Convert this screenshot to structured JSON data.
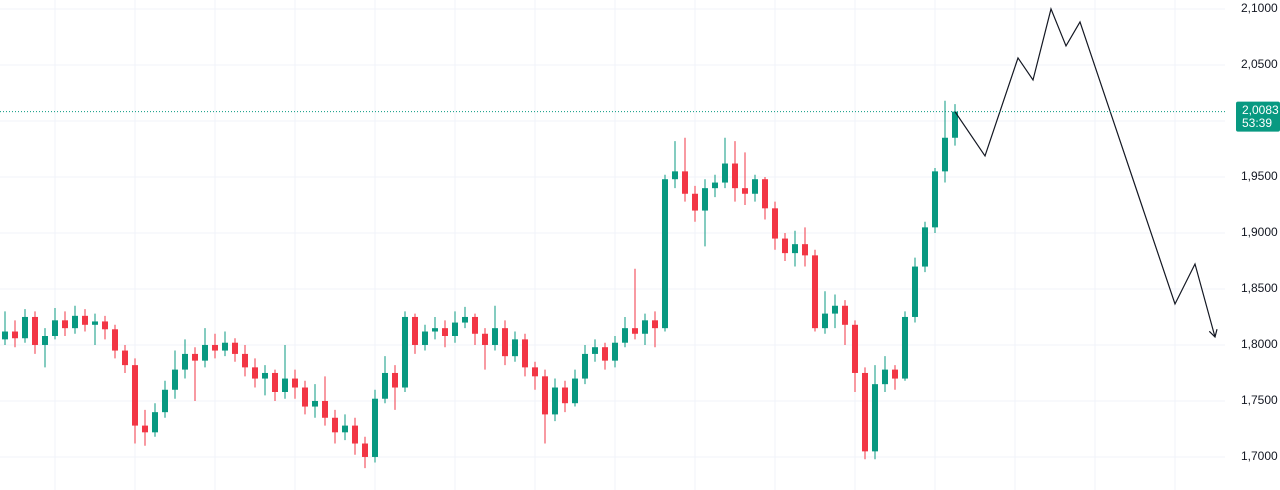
{
  "chart_data": {
    "type": "candlestick",
    "open": [
      1.805,
      1.812,
      1.806,
      1.825,
      1.8,
      1.808,
      1.822,
      1.815,
      1.826,
      1.818,
      1.821,
      1.814,
      1.795,
      1.782,
      1.728,
      1.722,
      1.74,
      1.76,
      1.778,
      1.792,
      1.786,
      1.8,
      1.795,
      1.802,
      1.792,
      1.78,
      1.77,
      1.775,
      1.758,
      1.77,
      1.762,
      1.745,
      1.75,
      1.735,
      1.722,
      1.728,
      1.712,
      1.7,
      1.752,
      1.775,
      1.762,
      1.825,
      1.8,
      1.812,
      1.815,
      1.808,
      1.82,
      1.825,
      1.81,
      1.8,
      1.815,
      1.79,
      1.805,
      1.78,
      1.772,
      1.738,
      1.762,
      1.748,
      1.77,
      1.792,
      1.798,
      1.786,
      1.802,
      1.815,
      1.81,
      1.822,
      1.815,
      1.948,
      1.955,
      1.935,
      1.92,
      1.94,
      1.945,
      1.962,
      1.94,
      1.935,
      1.948,
      1.922,
      1.895,
      1.882,
      1.89,
      1.88,
      1.815,
      1.828,
      1.835,
      1.818,
      1.775,
      1.705,
      1.765,
      1.778,
      1.77,
      1.825,
      1.87,
      1.905,
      1.955,
      1.985
    ],
    "high": [
      1.83,
      1.822,
      1.832,
      1.83,
      1.815,
      1.833,
      1.83,
      1.835,
      1.832,
      1.828,
      1.826,
      1.818,
      1.8,
      1.788,
      1.742,
      1.748,
      1.768,
      1.795,
      1.805,
      1.798,
      1.815,
      1.81,
      1.812,
      1.806,
      1.8,
      1.788,
      1.782,
      1.778,
      1.8,
      1.778,
      1.768,
      1.765,
      1.772,
      1.742,
      1.738,
      1.735,
      1.718,
      1.76,
      1.79,
      1.782,
      1.83,
      1.828,
      1.818,
      1.825,
      1.822,
      1.83,
      1.834,
      1.828,
      1.815,
      1.835,
      1.822,
      1.812,
      1.81,
      1.785,
      1.778,
      1.77,
      1.768,
      1.778,
      1.8,
      1.805,
      1.802,
      1.808,
      1.825,
      1.868,
      1.828,
      1.83,
      1.952,
      1.982,
      1.985,
      1.942,
      1.948,
      1.952,
      1.985,
      1.982,
      1.972,
      1.952,
      1.95,
      1.928,
      1.9,
      1.902,
      1.905,
      1.885,
      1.848,
      1.845,
      1.84,
      1.822,
      1.78,
      1.782,
      1.79,
      1.782,
      1.83,
      1.878,
      1.91,
      1.958,
      2.018,
      2.015
    ],
    "low": [
      1.8,
      1.798,
      1.802,
      1.792,
      1.78,
      1.805,
      1.808,
      1.81,
      1.812,
      1.8,
      1.805,
      1.788,
      1.775,
      1.712,
      1.71,
      1.718,
      1.735,
      1.752,
      1.77,
      1.75,
      1.78,
      1.788,
      1.79,
      1.785,
      1.772,
      1.762,
      1.755,
      1.75,
      1.752,
      1.752,
      1.738,
      1.735,
      1.728,
      1.712,
      1.715,
      1.702,
      1.69,
      1.695,
      1.748,
      1.742,
      1.758,
      1.792,
      1.795,
      1.805,
      1.798,
      1.802,
      1.815,
      1.8,
      1.778,
      1.795,
      1.782,
      1.785,
      1.772,
      1.76,
      1.712,
      1.732,
      1.74,
      1.745,
      1.765,
      1.785,
      1.778,
      1.78,
      1.798,
      1.805,
      1.8,
      1.798,
      1.812,
      1.94,
      1.928,
      1.91,
      1.888,
      1.932,
      1.94,
      1.928,
      1.925,
      1.928,
      1.912,
      1.885,
      1.875,
      1.87,
      1.87,
      1.812,
      1.81,
      1.815,
      1.8,
      1.758,
      1.698,
      1.698,
      1.758,
      1.76,
      1.768,
      1.82,
      1.865,
      1.9,
      1.945,
      1.978
    ],
    "close": [
      1.812,
      1.806,
      1.825,
      1.8,
      1.808,
      1.822,
      1.815,
      1.826,
      1.818,
      1.821,
      1.814,
      1.795,
      1.782,
      1.728,
      1.722,
      1.74,
      1.76,
      1.778,
      1.792,
      1.786,
      1.8,
      1.795,
      1.802,
      1.792,
      1.78,
      1.77,
      1.775,
      1.758,
      1.77,
      1.762,
      1.745,
      1.75,
      1.735,
      1.722,
      1.728,
      1.712,
      1.7,
      1.752,
      1.775,
      1.762,
      1.825,
      1.8,
      1.812,
      1.815,
      1.808,
      1.82,
      1.825,
      1.81,
      1.8,
      1.815,
      1.79,
      1.805,
      1.78,
      1.772,
      1.738,
      1.762,
      1.748,
      1.77,
      1.792,
      1.798,
      1.786,
      1.802,
      1.815,
      1.81,
      1.822,
      1.815,
      1.948,
      1.955,
      1.935,
      1.92,
      1.94,
      1.945,
      1.962,
      1.94,
      1.935,
      1.948,
      1.922,
      1.895,
      1.882,
      1.89,
      1.88,
      1.815,
      1.828,
      1.835,
      1.818,
      1.775,
      1.705,
      1.765,
      1.778,
      1.77,
      1.825,
      1.87,
      1.905,
      1.955,
      1.985,
      2.0083
    ],
    "up_color": "#089981",
    "down_color": "#f23645",
    "ylim": [
      1.6705,
      2.108
    ],
    "yticks": [
      {
        "value": 1.7,
        "label": "1,7000"
      },
      {
        "value": 1.75,
        "label": "1,7500"
      },
      {
        "value": 1.8,
        "label": "1,8000"
      },
      {
        "value": 1.85,
        "label": "1,8500"
      },
      {
        "value": 1.9,
        "label": "1,9000"
      },
      {
        "value": 1.95,
        "label": "1,9500"
      },
      {
        "value": 2.0,
        "label": "2,0000"
      },
      {
        "value": 2.05,
        "label": "2,0500"
      },
      {
        "value": 2.1,
        "label": "2,1000"
      }
    ],
    "grid": true,
    "last_price": {
      "value": 2.0083,
      "label": "2,0083"
    },
    "countdown": "53:39",
    "projection": {
      "color": "#131722",
      "x": [
        95,
        98,
        101.3,
        102.8,
        104.6,
        106.1,
        107.5,
        117,
        119,
        121
      ],
      "values": [
        2.0083,
        1.9688,
        2.0563,
        2.0366,
        2.1,
        2.067,
        2.0884,
        1.8366,
        1.8723,
        1.8071
      ]
    }
  }
}
